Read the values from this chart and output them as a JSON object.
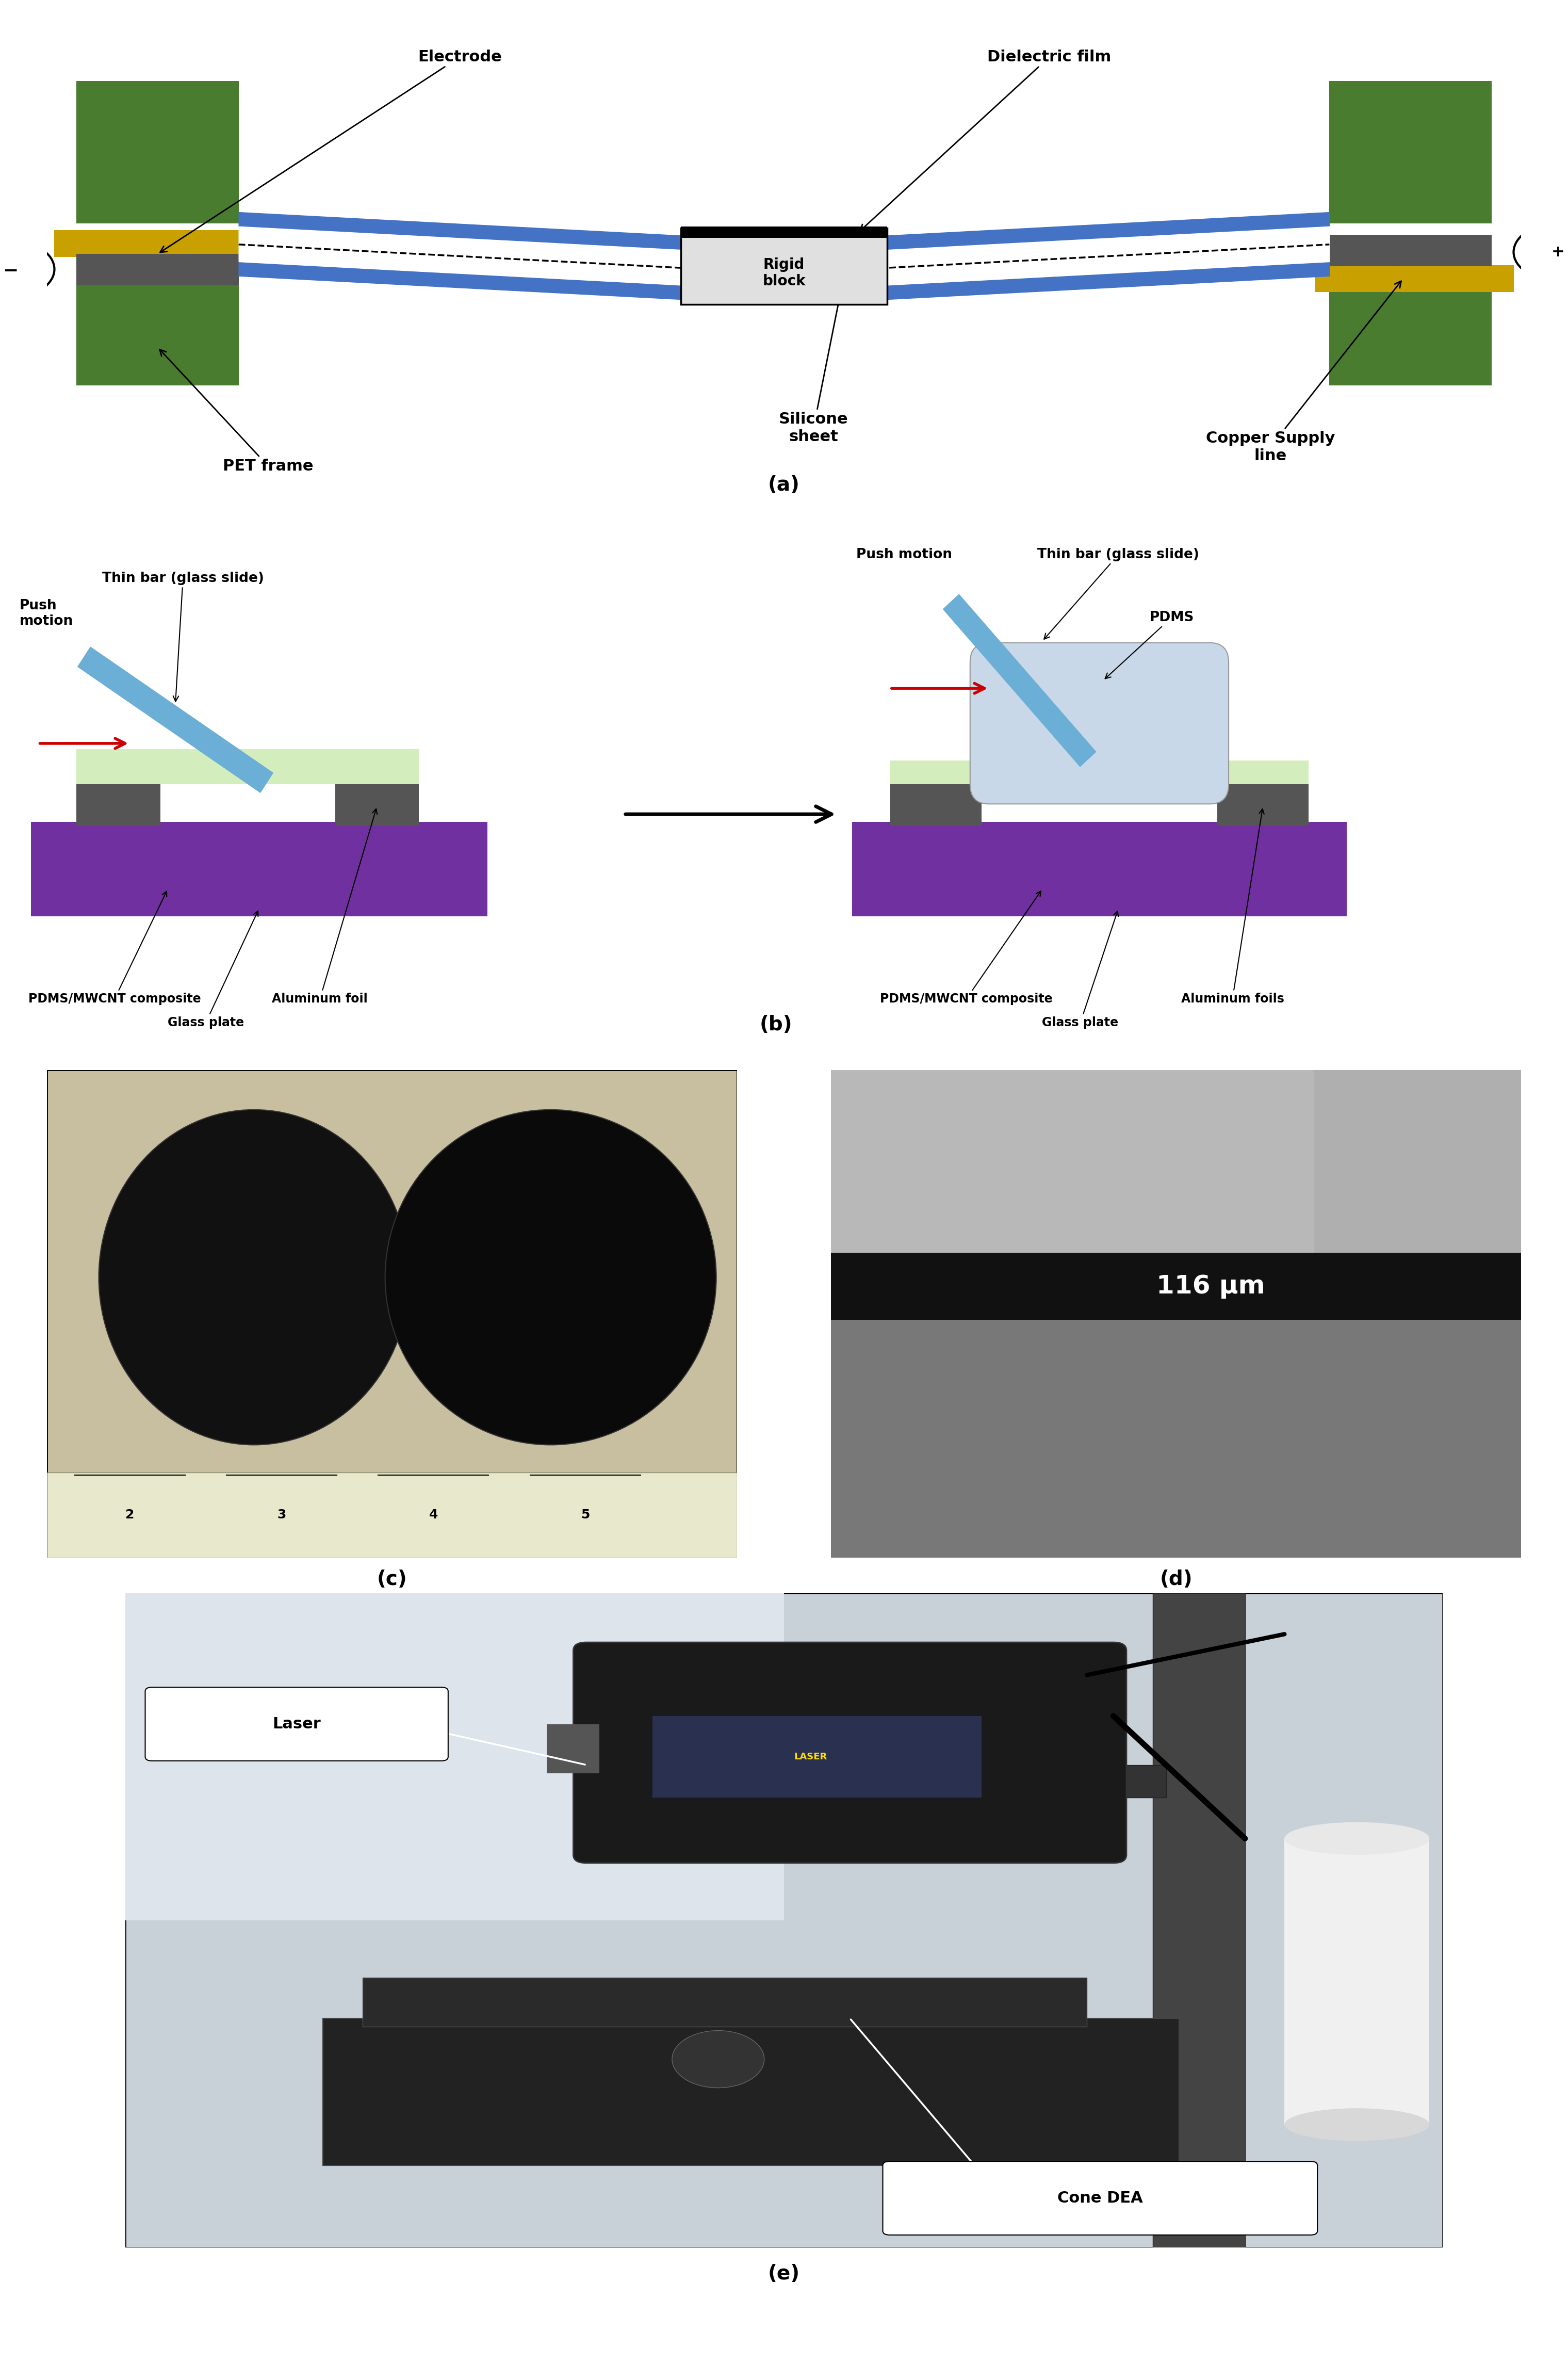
{
  "fig_width": 30.4,
  "fig_height": 46.09,
  "background": "#ffffff",
  "panel_a": {
    "label": "(a)",
    "labels": {
      "electrode": "Electrode",
      "dielectric": "Dielectric film",
      "pet_frame": "PET frame",
      "rigid_block": "Rigid\nblock",
      "silicone": "Silicone\nsheet",
      "copper": "Copper Supply\nline",
      "minus": "−",
      "plus": "+"
    }
  },
  "panel_b": {
    "label": "(b)",
    "labels": {
      "push_motion_left": "Push\nmotion",
      "thin_bar_left": "Thin bar (glass slide)",
      "pdms_mwcnt_left": "PDMS/MWCNT composite",
      "aluminum_left": "Aluminum foil",
      "glass_left": "Glass plate",
      "push_motion_right": "Push motion",
      "thin_bar_right": "Thin bar (glass slide)",
      "pdms": "PDMS",
      "pdms_mwcnt_right": "PDMS/MWCNT composite",
      "aluminum_right": "Aluminum foils",
      "glass_right": "Glass plate"
    }
  },
  "panel_c": {
    "label": "(c)"
  },
  "panel_d": {
    "label": "(d)",
    "annotation": "116 μm"
  },
  "panel_e": {
    "label": "(e)",
    "labels": {
      "laser": "Laser",
      "cone_dea": "Cone DEA"
    }
  },
  "colors": {
    "green": "#4a7c2f",
    "gold": "#c8a000",
    "blue": "#4472c4",
    "gray_dark": "#555555",
    "gray_light": "#cccccc",
    "white": "#ffffff",
    "black": "#000000",
    "purple": "#7030a0",
    "light_green": "#d4edbc",
    "red": "#cc0000",
    "light_blue_glass": "#6baed6",
    "pdms_color": "#c8d8e8"
  }
}
